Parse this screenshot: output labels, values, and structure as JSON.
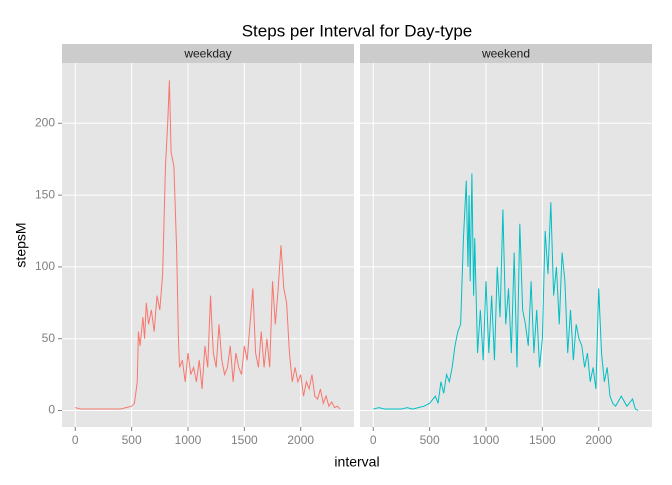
{
  "chart_data": {
    "type": "line",
    "title": "Steps per Interval for Day-type",
    "x_label": "interval",
    "y_label": "stepsM",
    "facet": true,
    "grid": true,
    "xlim": [
      -117.75,
      2472.75
    ],
    "xticks": [
      0,
      500,
      1000,
      1500,
      2000
    ],
    "ylim": [
      -11.5,
      242
    ],
    "yticks": [
      0,
      50,
      100,
      150,
      200
    ],
    "series": [
      {
        "name": "weekday",
        "color": "#F8766D",
        "x": [
          0,
          50,
          100,
          150,
          200,
          250,
          300,
          350,
          400,
          450,
          500,
          525,
          550,
          560,
          575,
          600,
          615,
          630,
          650,
          675,
          700,
          725,
          750,
          775,
          800,
          820,
          835,
          850,
          875,
          900,
          915,
          925,
          950,
          975,
          1000,
          1025,
          1050,
          1075,
          1100,
          1125,
          1150,
          1175,
          1200,
          1215,
          1225,
          1250,
          1275,
          1300,
          1325,
          1350,
          1375,
          1400,
          1425,
          1450,
          1475,
          1500,
          1525,
          1550,
          1575,
          1600,
          1625,
          1650,
          1675,
          1700,
          1725,
          1750,
          1775,
          1800,
          1825,
          1850,
          1875,
          1900,
          1925,
          1950,
          1975,
          2000,
          2025,
          2050,
          2075,
          2100,
          2125,
          2150,
          2175,
          2200,
          2225,
          2250,
          2275,
          2300,
          2325,
          2350
        ],
        "values": [
          2,
          1,
          1,
          1,
          1,
          1,
          1,
          1,
          1,
          2,
          3,
          5,
          20,
          55,
          45,
          65,
          50,
          75,
          60,
          70,
          55,
          80,
          70,
          95,
          170,
          200,
          230,
          180,
          170,
          110,
          50,
          30,
          35,
          20,
          40,
          25,
          30,
          20,
          35,
          15,
          45,
          30,
          80,
          55,
          40,
          30,
          60,
          35,
          25,
          30,
          45,
          20,
          40,
          30,
          25,
          45,
          35,
          60,
          85,
          40,
          30,
          55,
          30,
          50,
          30,
          90,
          60,
          85,
          115,
          85,
          75,
          40,
          20,
          30,
          20,
          25,
          10,
          20,
          15,
          25,
          10,
          8,
          15,
          5,
          10,
          3,
          6,
          2,
          3,
          1
        ]
      },
      {
        "name": "weekend",
        "color": "#00BFC4",
        "x": [
          0,
          50,
          100,
          200,
          250,
          300,
          350,
          400,
          450,
          500,
          550,
          575,
          600,
          625,
          650,
          675,
          700,
          725,
          750,
          775,
          800,
          825,
          840,
          850,
          860,
          875,
          890,
          900,
          925,
          950,
          975,
          1000,
          1025,
          1050,
          1075,
          1100,
          1125,
          1150,
          1175,
          1200,
          1225,
          1250,
          1275,
          1300,
          1325,
          1350,
          1375,
          1400,
          1425,
          1450,
          1475,
          1500,
          1525,
          1550,
          1575,
          1600,
          1625,
          1650,
          1675,
          1700,
          1725,
          1750,
          1775,
          1800,
          1825,
          1850,
          1875,
          1900,
          1925,
          1950,
          1975,
          2000,
          2025,
          2050,
          2075,
          2100,
          2125,
          2150,
          2200,
          2250,
          2300,
          2325,
          2350
        ],
        "values": [
          1,
          2,
          1,
          1,
          1,
          2,
          1,
          2,
          3,
          5,
          10,
          5,
          20,
          12,
          25,
          20,
          30,
          45,
          55,
          60,
          120,
          160,
          100,
          150,
          90,
          165,
          80,
          120,
          40,
          70,
          35,
          90,
          40,
          80,
          35,
          100,
          65,
          140,
          60,
          85,
          40,
          110,
          30,
          130,
          70,
          60,
          45,
          90,
          40,
          70,
          30,
          50,
          125,
          95,
          145,
          80,
          100,
          60,
          110,
          90,
          40,
          70,
          35,
          60,
          50,
          45,
          30,
          40,
          20,
          30,
          15,
          85,
          40,
          20,
          30,
          10,
          5,
          3,
          10,
          3,
          8,
          1,
          0
        ]
      }
    ]
  }
}
